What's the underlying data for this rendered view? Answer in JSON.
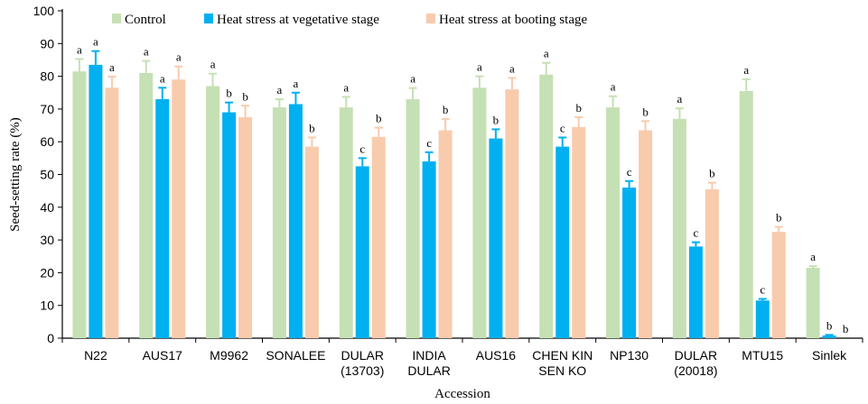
{
  "chart_data": {
    "type": "bar",
    "xlabel": "Accession",
    "ylabel": "Seed-setting rate (%)",
    "ylim": [
      0,
      100
    ],
    "yticks": [
      0,
      10,
      20,
      30,
      40,
      50,
      60,
      70,
      80,
      90,
      100
    ],
    "grid": false,
    "legend_position": "top",
    "categories": [
      [
        "N22"
      ],
      [
        "AUS17"
      ],
      [
        "M9962"
      ],
      [
        "SONALEE"
      ],
      [
        "DULAR",
        "(13703)"
      ],
      [
        "INDIA",
        "DULAR"
      ],
      [
        "AUS16"
      ],
      [
        "CHEN KIN",
        "SEN KO"
      ],
      [
        "NP130"
      ],
      [
        "DULAR",
        "(20018)"
      ],
      [
        "MTU15"
      ],
      [
        "Sinlek"
      ]
    ],
    "series": [
      {
        "name": "Control",
        "color": "#c5e0b4",
        "values": [
          81.5,
          81.0,
          77.0,
          70.5,
          70.5,
          73.0,
          76.5,
          80.5,
          70.5,
          67.0,
          75.5,
          21.5
        ],
        "errors": [
          3.8,
          3.7,
          3.8,
          2.5,
          3.2,
          3.4,
          3.5,
          3.6,
          3.4,
          3.2,
          3.6,
          0.5
        ],
        "letters": [
          "a",
          "a",
          "a",
          "a",
          "a",
          "a",
          "a",
          "a",
          "a",
          "a",
          "a",
          "a"
        ]
      },
      {
        "name": "Heat stress at vegetative stage",
        "color": "#00b0f0",
        "values": [
          83.5,
          73.0,
          69.0,
          71.5,
          52.5,
          54.0,
          61.0,
          58.5,
          46.0,
          28.0,
          11.5,
          0.8
        ],
        "errors": [
          4.2,
          3.5,
          3.0,
          3.5,
          2.5,
          2.8,
          2.8,
          2.8,
          2.0,
          1.3,
          0.5,
          0.2
        ],
        "letters": [
          "a",
          "a",
          "b",
          "a",
          "c",
          "c",
          "b",
          "c",
          "c",
          "c",
          "c",
          "b"
        ]
      },
      {
        "name": "Heat stress at booting stage",
        "color": "#f8cbad",
        "values": [
          76.5,
          79.0,
          67.5,
          58.5,
          61.5,
          63.5,
          76.0,
          64.5,
          63.5,
          45.5,
          32.5,
          0
        ],
        "errors": [
          3.4,
          4.0,
          3.5,
          2.8,
          2.8,
          3.4,
          3.5,
          3.0,
          2.8,
          2.0,
          1.5,
          0
        ],
        "letters": [
          "a",
          "a",
          "b",
          "b",
          "b",
          "b",
          "a",
          "b",
          "b",
          "b",
          "b",
          "b"
        ]
      }
    ]
  }
}
